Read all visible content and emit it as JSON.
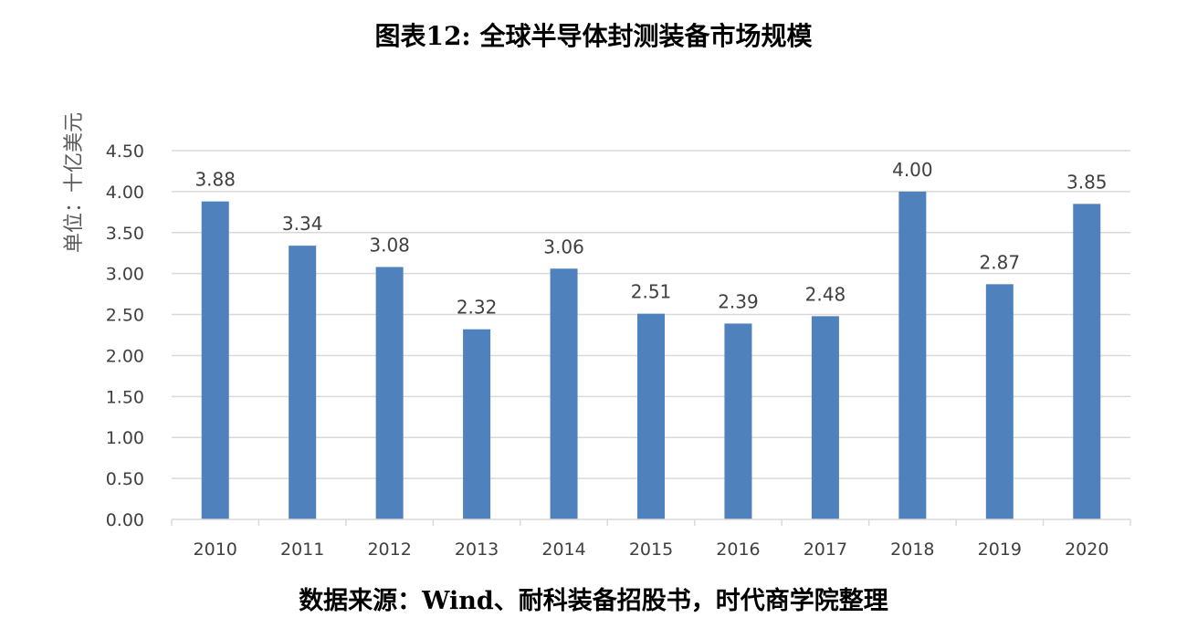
{
  "title": "图表12: 全球半导体封测装备市场规模",
  "source": "数据来源：Wind、耐科装备招股书，时代商学院整理",
  "chart_data": {
    "type": "bar",
    "title": "图表12: 全球半导体封测装备市场规模",
    "ylabel": "单位：十亿美元",
    "xlabel": "",
    "categories": [
      "2010",
      "2011",
      "2012",
      "2013",
      "2014",
      "2015",
      "2016",
      "2017",
      "2018",
      "2019",
      "2020"
    ],
    "values": [
      3.88,
      3.34,
      3.08,
      2.32,
      3.06,
      2.51,
      2.39,
      2.48,
      4.0,
      2.87,
      3.85
    ],
    "data_labels": [
      "3.88",
      "3.34",
      "3.08",
      "2.32",
      "3.06",
      "2.51",
      "2.39",
      "2.48",
      "4.00",
      "2.87",
      "3.85"
    ],
    "ylim": [
      0,
      4.5
    ],
    "yticks": [
      "0.00",
      "0.50",
      "1.00",
      "1.50",
      "2.00",
      "2.50",
      "3.00",
      "3.50",
      "4.00",
      "4.50"
    ],
    "grid": true,
    "legend": "none",
    "bar_color": "#4f81bd",
    "grid_color": "#d9d9d9"
  }
}
